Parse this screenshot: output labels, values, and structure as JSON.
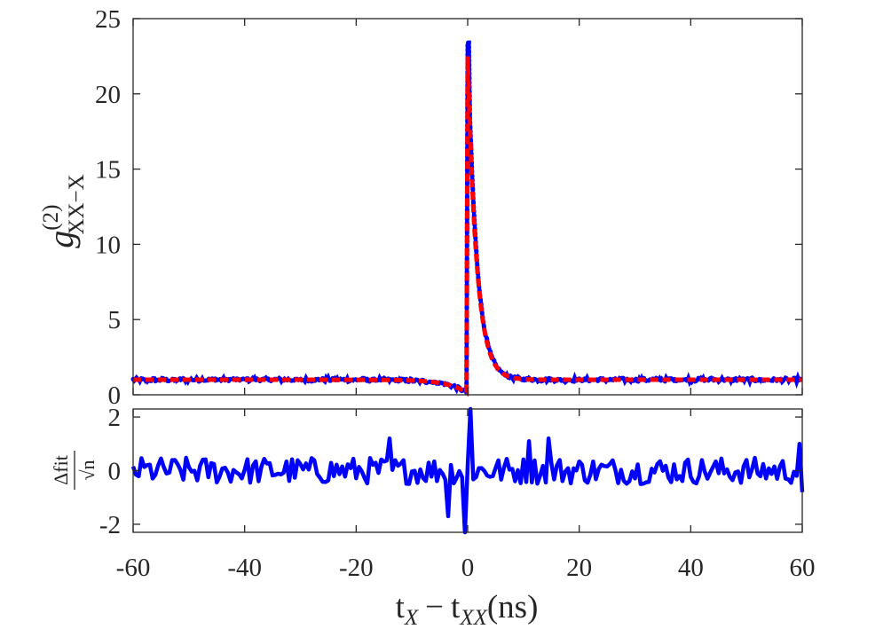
{
  "chart_data": [
    {
      "type": "line",
      "title": "",
      "xlabel": "t_X − t_XX(ns)",
      "ylabel": "g(2) XX−X",
      "ylabel_parts": {
        "base": "g",
        "sup": "(2)",
        "sub": "XX−X"
      },
      "xlim": [
        -60,
        60
      ],
      "ylim": [
        0,
        25
      ],
      "yticks": [
        0,
        5,
        10,
        15,
        20,
        25
      ],
      "yticklabels": [
        "0",
        "5",
        "10",
        "15",
        "20",
        "25"
      ],
      "xticks": [
        -60,
        -40,
        -20,
        0,
        20,
        40,
        60
      ],
      "grid": false,
      "legend": "none",
      "series": [
        {
          "role": "measured",
          "color": "#0000ff",
          "style": "dotted-markers",
          "baseline": 1.0,
          "peak": {
            "x": 0.1,
            "y": 23.4
          },
          "dip": {
            "x": -0.5,
            "y": 0.1
          },
          "rise_time_ns": 3.5,
          "decay_time_ns": 1.6
        },
        {
          "role": "fit",
          "color": "#ff0000",
          "style": "dashed",
          "baseline": 1.0,
          "peak": {
            "x": 0.1,
            "y": 22.5
          },
          "dip": {
            "x": -0.5,
            "y": 0.1
          },
          "rise_time_ns": 3.5,
          "decay_time_ns": 1.6
        }
      ]
    },
    {
      "type": "line",
      "title": "",
      "xlabel": "t_X − t_XX(ns)",
      "xlabel_parts": {
        "t1": "t",
        "s1": "X",
        "minus": "−",
        "t2": "t",
        "s2": "XX",
        "unit": "(ns)"
      },
      "ylabel": "Δfit / √n",
      "ylabel_parts": {
        "num": "Δfit",
        "den": "√n"
      },
      "xlim": [
        -60,
        60
      ],
      "ylim": [
        -2.3,
        2.3
      ],
      "yticks": [
        -2,
        0,
        2
      ],
      "yticklabels": [
        "-2",
        "0",
        "2"
      ],
      "xticks": [
        -60,
        -40,
        -20,
        0,
        20,
        40,
        60
      ],
      "xticklabels": [
        "-60",
        "-40",
        "-20",
        "0",
        "20",
        "40",
        "60"
      ],
      "grid": false,
      "legend": "none",
      "series": [
        {
          "role": "residuals",
          "color": "#0000ff",
          "noise_amplitude": 0.5,
          "features": [
            {
              "x": -14,
              "y": 1.2
            },
            {
              "x": -3.5,
              "y": -1.7
            },
            {
              "x": -0.4,
              "y": -2.3
            },
            {
              "x": 0.6,
              "y": 2.3
            },
            {
              "x": 11,
              "y": 1.1
            },
            {
              "x": 14.5,
              "y": 1.2
            },
            {
              "x": 59.6,
              "y": 1.0
            },
            {
              "x": 60,
              "y": -0.8
            }
          ]
        }
      ]
    }
  ]
}
